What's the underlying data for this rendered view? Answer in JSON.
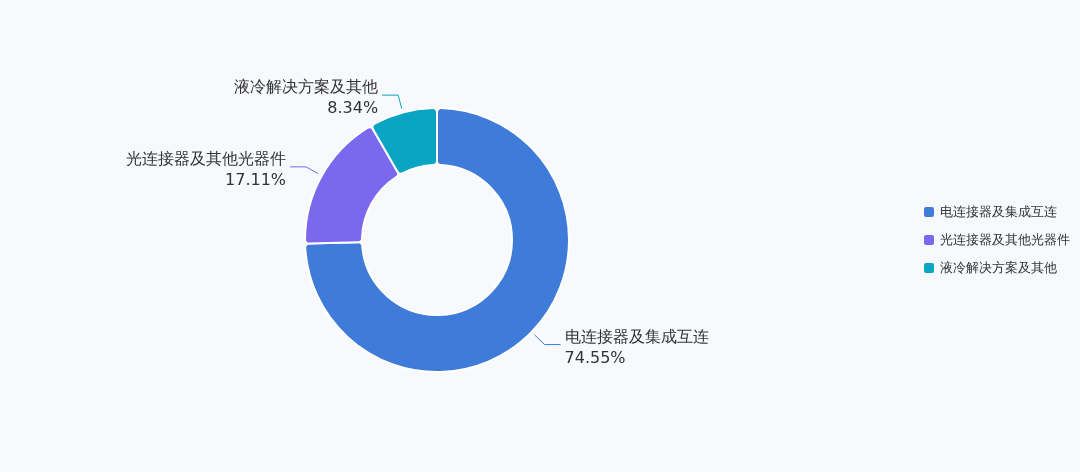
{
  "chart_data": {
    "type": "donut",
    "categories": [
      "电连接器及集成互连",
      "光连接器及其他光器件",
      "液冷解决方案及其他"
    ],
    "values": [
      74.55,
      17.11,
      8.34
    ],
    "colors": [
      "#3f7bd8",
      "#7b68ee",
      "#0aa5c2"
    ],
    "value_labels": [
      "74.55%",
      "17.11%",
      "8.34%"
    ],
    "legend": "right"
  }
}
